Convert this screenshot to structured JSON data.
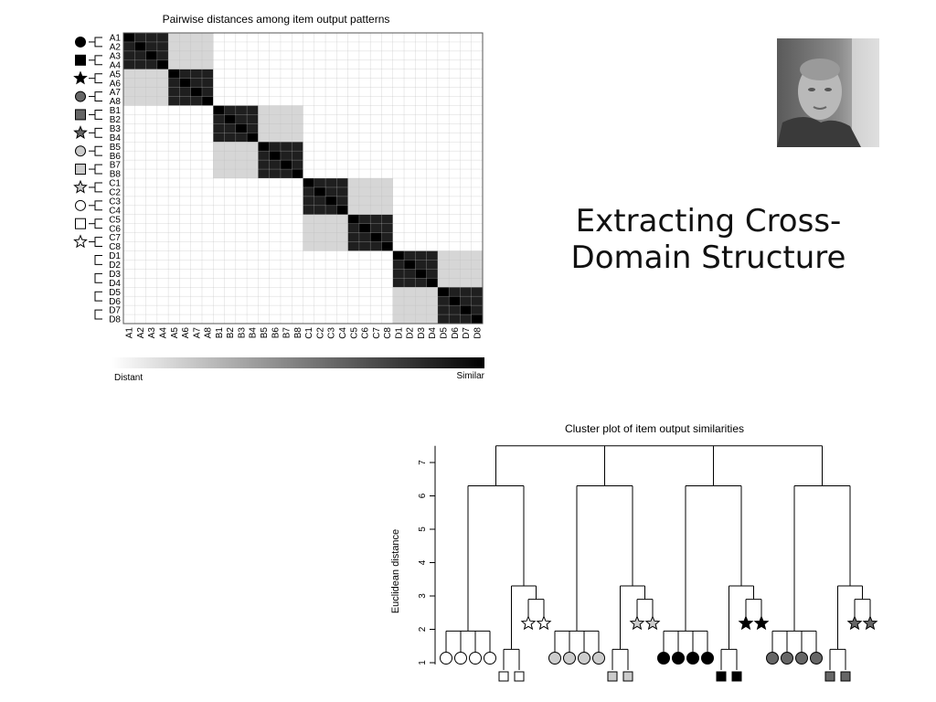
{
  "slide": {
    "title_line1": "Extracting Cross-",
    "title_line2": "Domain Structure"
  },
  "photo": {
    "description": "portrait",
    "icon": "person-photo"
  },
  "chart_data": [
    {
      "type": "heatmap",
      "title": "Pairwise distances among item output patterns",
      "row_labels": [
        "A1",
        "A2",
        "A3",
        "A4",
        "A5",
        "A6",
        "A7",
        "A8",
        "B1",
        "B2",
        "B3",
        "B4",
        "B5",
        "B6",
        "B7",
        "B8",
        "C1",
        "C2",
        "C3",
        "C4",
        "C5",
        "C6",
        "C7",
        "C8",
        "D1",
        "D2",
        "D3",
        "D4",
        "D5",
        "D6",
        "D7",
        "D8"
      ],
      "col_labels": [
        "A1",
        "A2",
        "A3",
        "A4",
        "A5",
        "A6",
        "A7",
        "A8",
        "B1",
        "B2",
        "B3",
        "B4",
        "B5",
        "B6",
        "B7",
        "B8",
        "C1",
        "C2",
        "C3",
        "C4",
        "C5",
        "C6",
        "C7",
        "C8",
        "D1",
        "D2",
        "D3",
        "D4",
        "D5",
        "D6",
        "D7",
        "D8"
      ],
      "colorbar": {
        "min_label": "Distant",
        "max_label": "Similar",
        "min_color": "#ffffff",
        "max_color": "#000000"
      },
      "similarity": {
        "self": 1.0,
        "same_group": 0.88,
        "paired_group": 0.65,
        "same_domain": 0.16,
        "other": 0.0
      },
      "row_groups": [
        {
          "shape": "circle",
          "fill": "#000000"
        },
        {
          "shape": "square",
          "fill": "#000000"
        },
        {
          "shape": "star",
          "fill": "#000000"
        },
        {
          "shape": "circle",
          "fill": "#666666"
        },
        {
          "shape": "square",
          "fill": "#666666"
        },
        {
          "shape": "star",
          "fill": "#666666"
        },
        {
          "shape": "circle",
          "fill": "#cccccc"
        },
        {
          "shape": "square",
          "fill": "#cccccc"
        },
        {
          "shape": "star",
          "fill": "#cccccc"
        },
        {
          "shape": "circle",
          "fill": "#ffffff"
        },
        {
          "shape": "square",
          "fill": "#ffffff"
        },
        {
          "shape": "star",
          "fill": "#ffffff"
        }
      ]
    },
    {
      "type": "dendrogram",
      "title": "Cluster plot of item output similarities",
      "ylabel": "Euclidean distance",
      "ylim": [
        1,
        7
      ],
      "yticks": [
        "1",
        "2",
        "3",
        "4",
        "5",
        "6",
        "7"
      ],
      "root_height": 7.5,
      "domain_height": 6.3,
      "domain_join_heights": [
        {
          "left": 6.3,
          "right": 6.3
        },
        {
          "left": 6.3,
          "right": 6.3
        },
        {
          "left": 6.3,
          "right": 6.3
        },
        {
          "left": 6.3,
          "right": 6.3
        }
      ],
      "domains": [
        {
          "fill": "#ffffff",
          "circles_height": 1.95,
          "sub_height": 3.3,
          "stars_height": 2.9,
          "squares_height": 1.4
        },
        {
          "fill": "#cccccc",
          "circles_height": 1.95,
          "sub_height": 3.3,
          "stars_height": 2.9,
          "squares_height": 1.4
        },
        {
          "fill": "#000000",
          "circles_height": 1.95,
          "sub_height": 3.3,
          "stars_height": 2.9,
          "squares_height": 1.4
        },
        {
          "fill": "#666666",
          "circles_height": 1.95,
          "sub_height": 3.3,
          "stars_height": 2.9,
          "squares_height": 1.4
        }
      ]
    }
  ]
}
